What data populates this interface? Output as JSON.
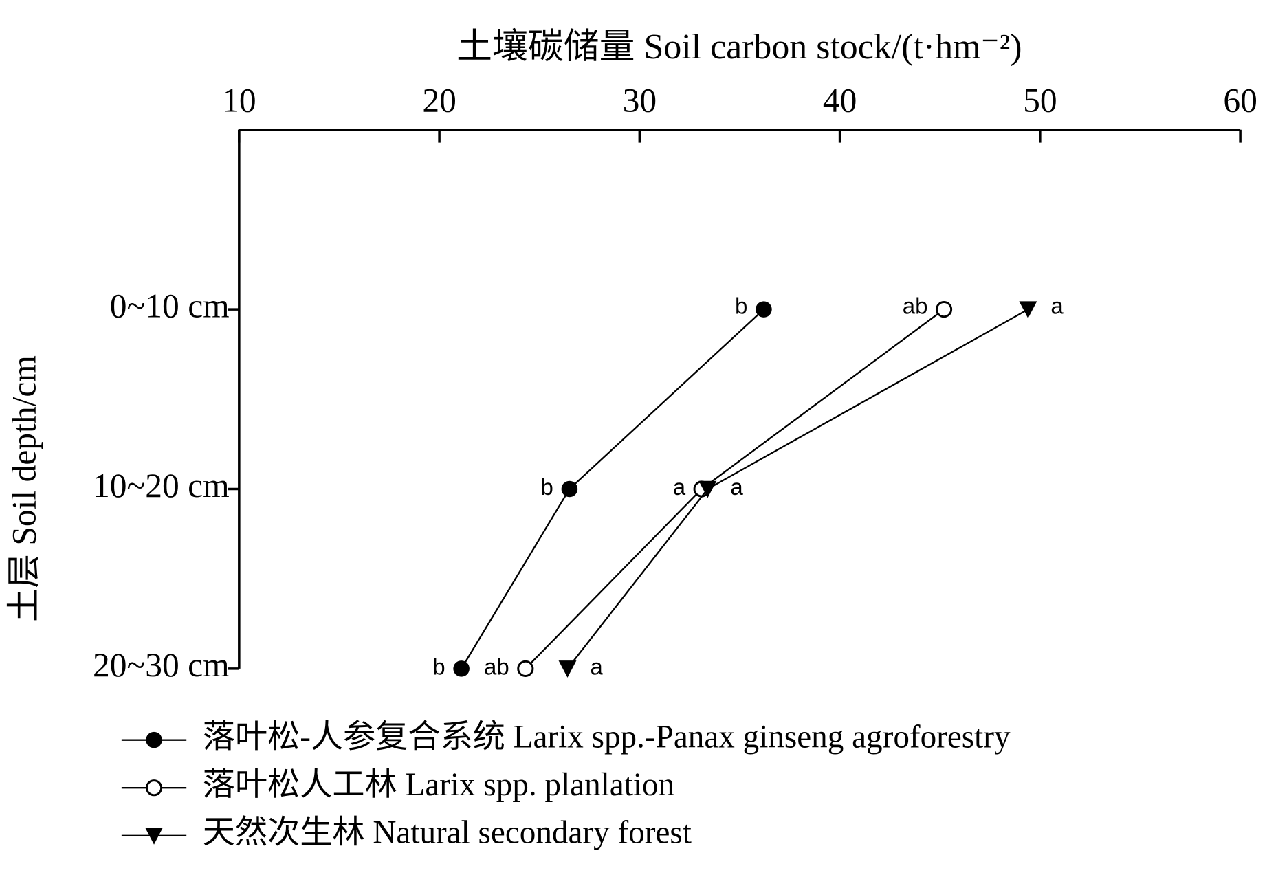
{
  "chart_data": {
    "type": "line",
    "title": "土壤碳储量 Soil carbon stock/(t·hm⁻²)",
    "y_label": "土层 Soil depth/cm",
    "categories": [
      "0~10 cm",
      "10~20 cm",
      "20~30 cm"
    ],
    "xlim": [
      10,
      60
    ],
    "xticks": [
      10,
      20,
      30,
      40,
      50,
      60
    ],
    "series": [
      {
        "name": "落叶松-人参复合系统 Larix spp.-Panax ginseng agroforestry",
        "color": "#000000",
        "marker": "filled-circle",
        "values": [
          36.2,
          26.5,
          21.1
        ],
        "letters": [
          "b",
          "b",
          "b"
        ]
      },
      {
        "name": "落叶松人工林 Larix spp. planlation",
        "color": "#000000",
        "marker": "open-circle",
        "values": [
          45.2,
          33.1,
          24.3
        ],
        "letters": [
          "ab",
          "a",
          "ab"
        ]
      },
      {
        "name": "天然次生林 Natural secondary forest",
        "color": "#000000",
        "marker": "triangle-down",
        "values": [
          49.4,
          33.4,
          26.4
        ],
        "letters": [
          "a",
          "a",
          "a"
        ]
      }
    ]
  }
}
